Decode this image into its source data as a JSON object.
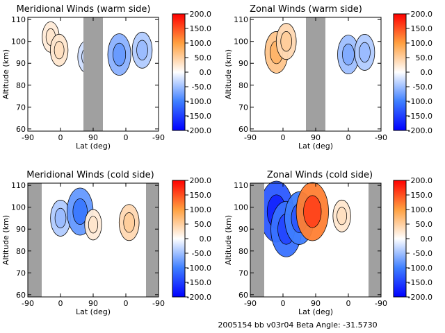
{
  "colorbar": {
    "ticks": [
      "200.0",
      "150.0",
      "100.0",
      "50.0",
      "0.0",
      "-50.0",
      "-100.0",
      "-150.0",
      "-200.0"
    ],
    "tick_values": [
      200,
      150,
      100,
      50,
      0,
      -50,
      -100,
      -150,
      -200
    ],
    "range": [
      -200,
      200
    ],
    "colors": [
      "#0000ff",
      "#3f7fff",
      "#ffffff",
      "#ffa040",
      "#ff0000"
    ]
  },
  "footer": "2005154 bb v03r04   Beta Angle: -31.5730",
  "chart_data": [
    {
      "type": "heatmap",
      "title": "Meridional Winds (warm side)",
      "xlabel": "Lat (deg)",
      "ylabel": "Altitude (km)",
      "xticks": [
        "-90",
        "0",
        "90",
        "0",
        "-90"
      ],
      "yticks": [
        "110",
        "100",
        "90",
        "80",
        "70",
        "60"
      ],
      "ylim": [
        59,
        111
      ],
      "values": [
        [
          35,
          102,
          20
        ],
        [
          48,
          96,
          25
        ],
        [
          90,
          93,
          -25
        ],
        [
          140,
          94,
          -60
        ],
        [
          175,
          96,
          -40
        ]
      ]
    },
    {
      "type": "heatmap",
      "title": "Zonal Winds (warm side)",
      "xlabel": "Lat (deg)",
      "ylabel": "Altitude (km)",
      "xticks": [
        "-90",
        "0",
        "90",
        "0",
        "-90"
      ],
      "yticks": [
        "110",
        "100",
        "90",
        "80",
        "70",
        "60"
      ],
      "ylim": [
        59,
        111
      ],
      "values": [
        [
          40,
          95,
          60
        ],
        [
          55,
          100,
          40
        ],
        [
          150,
          94,
          -50
        ],
        [
          175,
          95,
          -40
        ]
      ]
    },
    {
      "type": "heatmap",
      "title": "Meridional Winds (cold side)",
      "xlabel": "Lat (deg)",
      "ylabel": "Altitude (km)",
      "xticks": [
        "-90",
        "0",
        "90",
        "0",
        "-90"
      ],
      "yticks": [
        "110",
        "100",
        "90",
        "80",
        "70",
        "60"
      ],
      "ylim": [
        59,
        111
      ],
      "values": [
        [
          50,
          95,
          -40
        ],
        [
          80,
          98,
          -80
        ],
        [
          100,
          92,
          20
        ],
        [
          155,
          93,
          40
        ]
      ]
    },
    {
      "type": "heatmap",
      "title": "Zonal Winds (cold side)",
      "xlabel": "Lat (deg)",
      "ylabel": "Altitude (km)",
      "xticks": [
        "-90",
        "0",
        "90",
        "0",
        "-90"
      ],
      "yticks": [
        "110",
        "100",
        "90",
        "80",
        "70",
        "60"
      ],
      "ylim": [
        59,
        111
      ],
      "values": [
        [
          40,
          98,
          -130
        ],
        [
          55,
          90,
          -110
        ],
        [
          75,
          95,
          -100
        ],
        [
          95,
          98,
          120
        ],
        [
          140,
          96,
          25
        ]
      ]
    }
  ]
}
